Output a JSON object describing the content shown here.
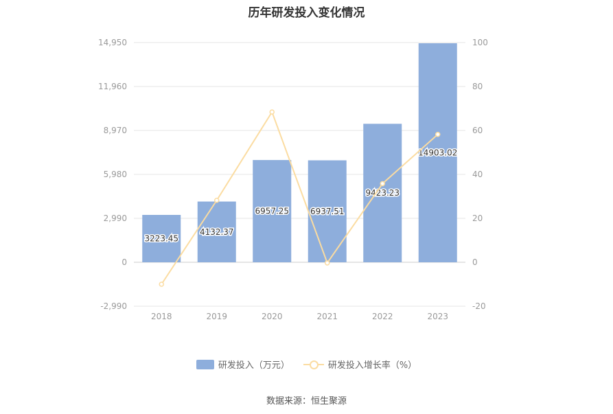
{
  "title": "历年研发投入变化情况",
  "source": "数据来源：恒生聚源",
  "legend": {
    "bar_label": "研发投入（万元）",
    "line_label": "研发投入增长率（%）"
  },
  "colors": {
    "bar": "#8eaedc",
    "line": "#fbdca1",
    "grid": "#e6e6e6",
    "axis_text": "#999999"
  },
  "chart_data": {
    "type": "bar",
    "categories": [
      "2018",
      "2019",
      "2020",
      "2021",
      "2022",
      "2023"
    ],
    "series": [
      {
        "name": "研发投入（万元）",
        "type": "bar",
        "axis": "left",
        "values": [
          3223.45,
          4132.37,
          6957.25,
          6937.51,
          9423.23,
          14903.02
        ],
        "data_labels": [
          "3223.45",
          "4132.37",
          "6957.25",
          "6937.51",
          "9423.23",
          "14903.02"
        ]
      },
      {
        "name": "研发投入增长率（%）",
        "type": "line",
        "axis": "right",
        "values": [
          -10,
          28.2,
          68.4,
          -0.3,
          35.8,
          58.2
        ]
      }
    ],
    "y_left": {
      "min": -2990,
      "max": 14950,
      "ticks": [
        -2990,
        0,
        2990,
        5980,
        8970,
        11960,
        14950
      ],
      "tick_labels": [
        "-2,990",
        "0",
        "2,990",
        "5,980",
        "8,970",
        "11,960",
        "14,950"
      ]
    },
    "y_right": {
      "min": -20,
      "max": 100,
      "ticks": [
        -20,
        0,
        20,
        40,
        60,
        80,
        100
      ],
      "tick_labels": [
        "-20",
        "0",
        "20",
        "40",
        "60",
        "80",
        "100"
      ]
    },
    "grid": true,
    "legend_position": "bottom"
  }
}
